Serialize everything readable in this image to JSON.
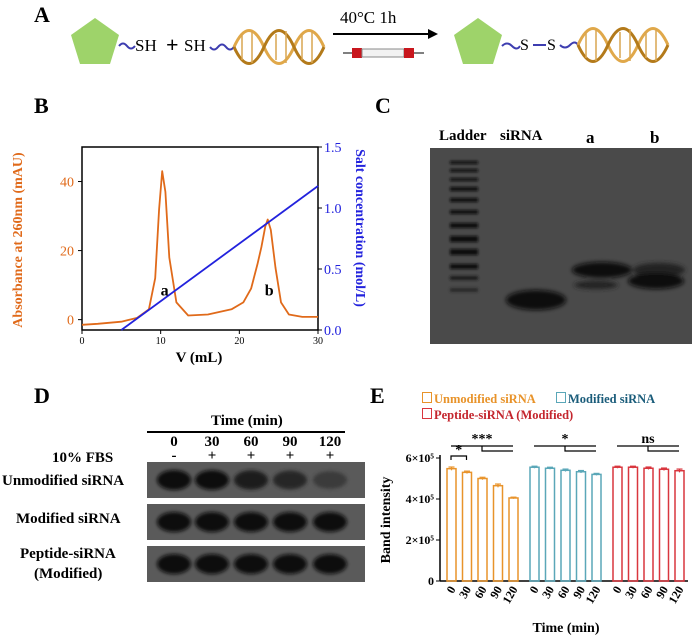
{
  "panels": {
    "A": "A",
    "B": "B",
    "C": "C",
    "D": "D",
    "E": "E"
  },
  "scheme": {
    "reactant1_group": "SH",
    "plus": "+",
    "reactant2_group": "SH",
    "condition": "40°C 1h",
    "product_bond_atom1": "S",
    "product_bond_atom2": "S",
    "colors": {
      "pentagon": "#9ed36a",
      "linker": "#3d3db0",
      "dna1": "#e0a84a",
      "dna2": "#b37a1a",
      "arrow": "#000000"
    }
  },
  "chromatogram": {
    "chart_data": {
      "type": "line",
      "x_label": "V (mL)",
      "x_ticks": [
        "0",
        "10",
        "20",
        "30"
      ],
      "xlim": [
        0,
        30
      ],
      "y_left_label": "Absorbance at 260nm (mAU)",
      "y_left_ticks": [
        "0",
        "20",
        "40"
      ],
      "y_left_lim": [
        -3,
        50
      ],
      "y_right_label": "Salt concentration (mol/L)",
      "y_right_ticks": [
        "0.0",
        "0.5",
        "1.0",
        "1.5"
      ],
      "y_right_lim": [
        0,
        1.5
      ],
      "peak_labels": [
        {
          "text": "a",
          "x": 10.5,
          "y": 7
        },
        {
          "text": "b",
          "x": 23.8,
          "y": 7
        }
      ],
      "series": [
        {
          "axis": "left",
          "color": "#e06a1a",
          "x": [
            0,
            2,
            5,
            7,
            8.5,
            9.3,
            9.8,
            10.2,
            10.6,
            11.1,
            12,
            13.5,
            16,
            19,
            20.5,
            21.5,
            22.3,
            22.8,
            23.3,
            23.6,
            24,
            24.6,
            25.3,
            26.3,
            28,
            30
          ],
          "y": [
            -1.5,
            -1.2,
            -0.6,
            0.5,
            3,
            12,
            32,
            43,
            37,
            18,
            5,
            1.2,
            1.5,
            3,
            5,
            9,
            16,
            21,
            27,
            29,
            26,
            15,
            5,
            1.5,
            0.8,
            0.8
          ]
        },
        {
          "axis": "right",
          "color": "#2222dd",
          "x": [
            5,
            30
          ],
          "y": [
            0.0,
            1.18
          ]
        }
      ]
    }
  },
  "gel_c": {
    "lane_labels": [
      "Ladder",
      "siRNA",
      "a",
      "b"
    ]
  },
  "gel_d": {
    "time_header": "Time (min)",
    "times": [
      "0",
      "30",
      "60",
      "90",
      "120"
    ],
    "fbs_label": "10% FBS",
    "fbs_signs": [
      "-",
      "+",
      "+",
      "+",
      "+"
    ],
    "rows": [
      {
        "label": "Unmodified siRNA",
        "band_intensity": [
          1.0,
          0.96,
          0.9,
          0.82,
          0.7
        ]
      },
      {
        "label": "Modified siRNA",
        "band_intensity": [
          1.0,
          0.99,
          0.98,
          0.97,
          0.96
        ]
      },
      {
        "label_line1": "Peptide-siRNA",
        "label_line2": "(Modified)",
        "band_intensity": [
          1.0,
          0.99,
          0.98,
          0.98,
          0.97
        ]
      }
    ]
  },
  "bar_chart": {
    "chart_data": {
      "type": "bar",
      "ylabel": "Band intensity",
      "xlabel": "Time (min)",
      "ylim": [
        0,
        600000
      ],
      "y_ticks": [
        "0",
        "2×10⁵",
        "4×10⁵",
        "6×10⁵"
      ],
      "categories": [
        "0",
        "30",
        "60",
        "90",
        "120"
      ],
      "legend": [
        "Unmodified siRNA",
        "Modified siRNA",
        "Peptide-siRNA (Modified)"
      ],
      "series": [
        {
          "name": "Unmodified siRNA",
          "color": "#e8932a",
          "values": [
            548000,
            530000,
            500000,
            465000,
            405000
          ],
          "errors": [
            8000,
            6000,
            6000,
            8000,
            4000
          ]
        },
        {
          "name": "Modified siRNA",
          "color": "#5aa7b8",
          "values": [
            555000,
            550000,
            540000,
            533000,
            520000
          ],
          "errors": [
            5000,
            5000,
            6000,
            6000,
            5000
          ]
        },
        {
          "name": "Peptide-siRNA (Modified)",
          "color": "#d9363e",
          "values": [
            555000,
            555000,
            550000,
            545000,
            538000
          ],
          "errors": [
            5000,
            5000,
            6000,
            6000,
            8000
          ]
        }
      ],
      "significance": [
        "*",
        "***",
        "*",
        "ns"
      ]
    }
  }
}
